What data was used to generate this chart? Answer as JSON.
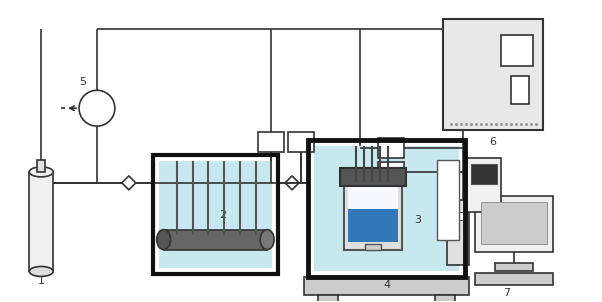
{
  "bg_color": "#ffffff",
  "figure_width": 6.02,
  "figure_height": 3.02,
  "dpi": 100,
  "water_color1": "#c8e8f0",
  "water_color2": "#c8e8f0",
  "blue_liquid": "#3377bb",
  "line_color": "#333333",
  "light_gray": "#e8e8e8",
  "medium_gray": "#aaaaaa",
  "dark_gray": "#555555",
  "black_border": "#111111"
}
